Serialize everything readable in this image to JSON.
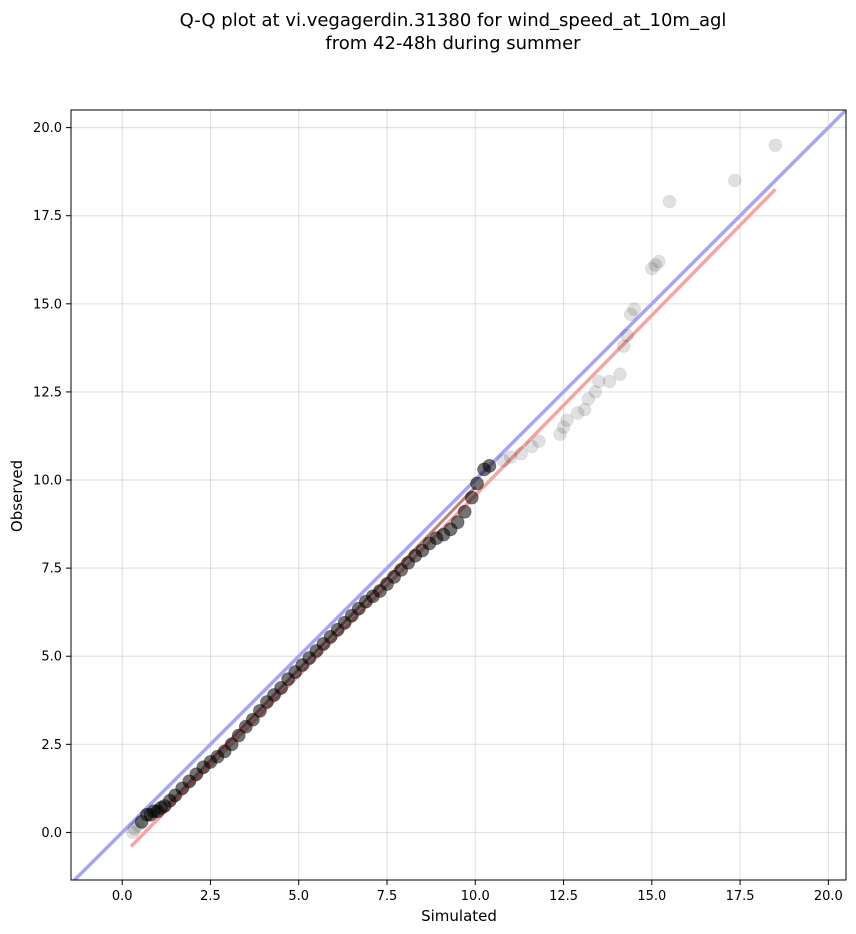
{
  "chart_data": {
    "type": "scatter",
    "title_lines": [
      "Q-Q plot at vi.vegagerdin.31380 for wind_speed_at_10m_agl",
      "from 42-48h during summer"
    ],
    "xlabel": "Simulated",
    "ylabel": "Observed",
    "xlim": [
      -1.45,
      20.5
    ],
    "ylim": [
      -1.35,
      20.5
    ],
    "xticks": [
      0.0,
      2.5,
      5.0,
      7.5,
      10.0,
      12.5,
      15.0,
      17.5,
      20.0
    ],
    "yticks": [
      0.0,
      2.5,
      5.0,
      7.5,
      10.0,
      12.5,
      15.0,
      17.5,
      20.0
    ],
    "xtick_labels": [
      "0.0",
      "2.5",
      "5.0",
      "7.5",
      "10.0",
      "12.5",
      "15.0",
      "17.5",
      "20.0"
    ],
    "ytick_labels": [
      "0.0",
      "2.5",
      "5.0",
      "7.5",
      "10.0",
      "12.5",
      "15.0",
      "17.5",
      "20.0"
    ],
    "grid": true,
    "reference_line": {
      "description": "identity y = x",
      "color": "#a6a6f4",
      "from": [
        -1.45,
        -1.45
      ],
      "to": [
        20.5,
        20.5
      ]
    },
    "fit_line": {
      "color": "#f4a6a6",
      "from": [
        0.25,
        -0.4
      ],
      "to": [
        18.5,
        18.25
      ]
    },
    "point_color": "#000000",
    "dense_segment_color": "#8b1414",
    "dense_segment": {
      "from": [
        1.3,
        0.8
      ],
      "to": [
        10.0,
        9.8
      ]
    },
    "points": [
      [
        0.3,
        0.0
      ],
      [
        0.35,
        0.1
      ],
      [
        0.45,
        0.2
      ],
      [
        0.55,
        0.3
      ],
      [
        0.7,
        0.5
      ],
      [
        0.8,
        0.5
      ],
      [
        0.9,
        0.6
      ],
      [
        1.0,
        0.6
      ],
      [
        1.1,
        0.7
      ],
      [
        1.2,
        0.75
      ],
      [
        1.35,
        0.9
      ],
      [
        1.5,
        1.05
      ],
      [
        1.7,
        1.25
      ],
      [
        1.9,
        1.45
      ],
      [
        2.1,
        1.65
      ],
      [
        2.3,
        1.85
      ],
      [
        2.5,
        2.0
      ],
      [
        2.7,
        2.15
      ],
      [
        2.9,
        2.3
      ],
      [
        3.1,
        2.5
      ],
      [
        3.3,
        2.75
      ],
      [
        3.5,
        3.0
      ],
      [
        3.7,
        3.2
      ],
      [
        3.9,
        3.45
      ],
      [
        4.1,
        3.7
      ],
      [
        4.3,
        3.9
      ],
      [
        4.5,
        4.1
      ],
      [
        4.7,
        4.35
      ],
      [
        4.9,
        4.55
      ],
      [
        5.1,
        4.75
      ],
      [
        5.3,
        4.95
      ],
      [
        5.5,
        5.15
      ],
      [
        5.7,
        5.35
      ],
      [
        5.9,
        5.55
      ],
      [
        6.1,
        5.75
      ],
      [
        6.3,
        5.95
      ],
      [
        6.5,
        6.15
      ],
      [
        6.7,
        6.35
      ],
      [
        6.9,
        6.55
      ],
      [
        7.1,
        6.7
      ],
      [
        7.3,
        6.85
      ],
      [
        7.5,
        7.05
      ],
      [
        7.7,
        7.25
      ],
      [
        7.9,
        7.45
      ],
      [
        8.1,
        7.65
      ],
      [
        8.3,
        7.85
      ],
      [
        8.5,
        8.0
      ],
      [
        8.7,
        8.2
      ],
      [
        8.9,
        8.35
      ],
      [
        9.1,
        8.45
      ],
      [
        9.3,
        8.6
      ],
      [
        9.5,
        8.8
      ],
      [
        9.7,
        9.1
      ],
      [
        9.9,
        9.5
      ],
      [
        10.05,
        9.9
      ],
      [
        10.25,
        10.3
      ],
      [
        10.4,
        10.4
      ],
      [
        10.8,
        10.55
      ],
      [
        11.0,
        10.65
      ],
      [
        11.3,
        10.75
      ],
      [
        11.6,
        10.95
      ],
      [
        11.8,
        11.1
      ],
      [
        12.4,
        11.3
      ],
      [
        12.5,
        11.5
      ],
      [
        12.6,
        11.7
      ],
      [
        12.9,
        11.9
      ],
      [
        13.1,
        12.0
      ],
      [
        13.2,
        12.3
      ],
      [
        13.4,
        12.5
      ],
      [
        13.5,
        12.8
      ],
      [
        13.8,
        12.8
      ],
      [
        14.1,
        13.0
      ],
      [
        14.2,
        13.8
      ],
      [
        14.3,
        14.1
      ],
      [
        14.4,
        14.7
      ],
      [
        14.5,
        14.85
      ],
      [
        15.0,
        16.0
      ],
      [
        15.1,
        16.1
      ],
      [
        15.2,
        16.2
      ],
      [
        15.5,
        17.9
      ],
      [
        17.35,
        18.5
      ],
      [
        18.5,
        19.5
      ]
    ]
  }
}
